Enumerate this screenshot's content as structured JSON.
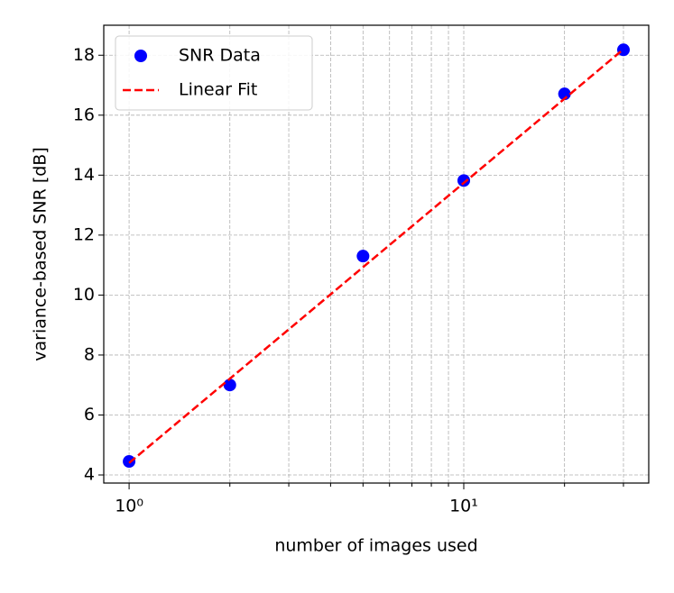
{
  "chart_data": {
    "type": "scatter",
    "x_label": "number of images used",
    "y_label": "variance-based SNR [dB]",
    "x": [
      1,
      2,
      5,
      10,
      20,
      30
    ],
    "series": [
      {
        "name": "SNR Data",
        "type": "scatter",
        "color": "#0000ff",
        "values": [
          4.45,
          7.0,
          11.3,
          13.82,
          16.71,
          18.18
        ]
      },
      {
        "name": "Linear Fit",
        "type": "line",
        "linestyle": "dashed",
        "color": "#ff0000",
        "values": [
          4.4,
          7.21,
          10.93,
          13.74,
          16.55,
          18.2
        ]
      }
    ],
    "xscale": "log",
    "xlim": [
      0.84,
      35.7
    ],
    "ylim": [
      3.73,
      19.0
    ],
    "xticks": [
      {
        "value": 1,
        "label": "10⁰"
      },
      {
        "value": 10,
        "label": "10¹"
      }
    ],
    "xminorticks": [
      2,
      3,
      4,
      5,
      6,
      7,
      8,
      9,
      20,
      30
    ],
    "yticks": [
      4,
      6,
      8,
      10,
      12,
      14,
      16,
      18
    ],
    "grid": true,
    "legend": "upper left"
  }
}
